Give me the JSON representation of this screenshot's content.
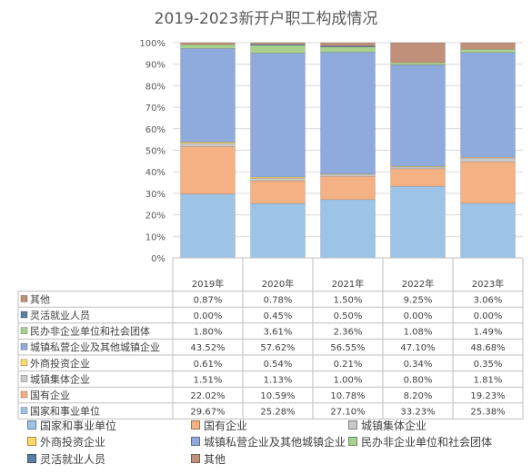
{
  "chart_data": {
    "type": "bar",
    "stacked": true,
    "normalized": true,
    "title": "2019-2023新开户职工构成情况",
    "categories": [
      "2019年",
      "2020年",
      "2021年",
      "2022年",
      "2023年"
    ],
    "y_ticks": [
      "0%",
      "10%",
      "20%",
      "30%",
      "40%",
      "50%",
      "60%",
      "70%",
      "80%",
      "90%",
      "100%"
    ],
    "ylim": [
      0,
      100
    ],
    "grid": true,
    "legend_position": "bottom",
    "series": [
      {
        "name": "国家和事业单位",
        "color": "#9DC3E6",
        "values": [
          29.67,
          25.28,
          27.1,
          33.23,
          25.38
        ],
        "labels": [
          "29.67%",
          "25.28%",
          "27.10%",
          "33.23%",
          "25.38%"
        ]
      },
      {
        "name": "国有企业",
        "color": "#F4B183",
        "values": [
          22.02,
          10.59,
          10.78,
          8.2,
          19.23
        ],
        "labels": [
          "22.02%",
          "10.59%",
          "10.78%",
          "8.20%",
          "19.23%"
        ]
      },
      {
        "name": "城镇集体企业",
        "color": "#C9C9C9",
        "values": [
          1.51,
          1.13,
          1.0,
          0.8,
          1.81
        ],
        "labels": [
          "1.51%",
          "1.13%",
          "1.00%",
          "0.80%",
          "1.81%"
        ]
      },
      {
        "name": "外商投资企业",
        "color": "#FFD966",
        "values": [
          0.61,
          0.54,
          0.21,
          0.34,
          0.35
        ],
        "labels": [
          "0.61%",
          "0.54%",
          "0.21%",
          "0.34%",
          "0.35%"
        ]
      },
      {
        "name": "城镇私营企业及其他城镇企业",
        "color": "#8FAADC",
        "values": [
          43.52,
          57.62,
          56.55,
          47.1,
          48.68
        ],
        "labels": [
          "43.52%",
          "57.62%",
          "56.55%",
          "47.10%",
          "48.68%"
        ]
      },
      {
        "name": "民办非企业单位和社会团体",
        "color": "#A9D18E",
        "values": [
          1.8,
          3.61,
          2.36,
          1.08,
          1.49
        ],
        "labels": [
          "1.80%",
          "3.61%",
          "2.36%",
          "1.08%",
          "1.49%"
        ]
      },
      {
        "name": "灵活就业人员",
        "color": "#5B7FA6",
        "values": [
          0.0,
          0.45,
          0.5,
          0.0,
          0.0
        ],
        "labels": [
          "0.00%",
          "0.45%",
          "0.50%",
          "0.00%",
          "0.00%"
        ]
      },
      {
        "name": "其他",
        "color": "#C0907A",
        "values": [
          0.87,
          0.78,
          1.5,
          9.25,
          3.06
        ],
        "labels": [
          "0.87%",
          "0.78%",
          "1.50%",
          "9.25%",
          "3.06%"
        ]
      }
    ]
  }
}
